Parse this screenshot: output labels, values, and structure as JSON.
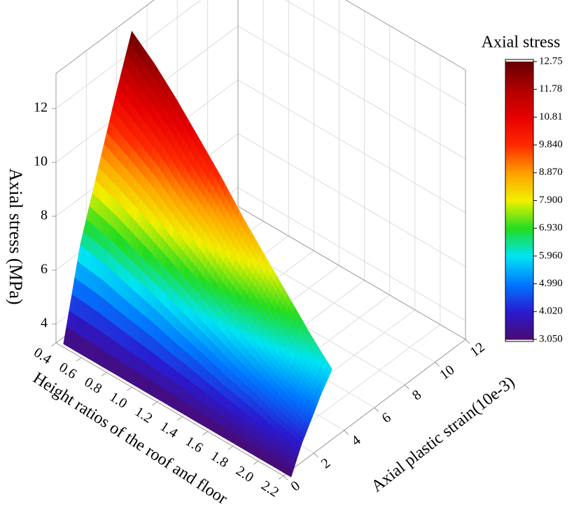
{
  "chart_data": {
    "type": "surface3d",
    "xlabel": "Height ratios of the roof and floor",
    "ylabel": "Axial plastic strain(10e-3)",
    "zlabel": "Axial stress (MPa)",
    "x": [
      0.4,
      0.6,
      0.8,
      1.0,
      1.2,
      1.4,
      1.6,
      1.8,
      2.0,
      2.2
    ],
    "y": [
      [
        0.5,
        1.6,
        2.8,
        3.9,
        5.0
      ],
      [
        0.5,
        1.6,
        2.7,
        3.7,
        4.8
      ],
      [
        0.5,
        1.5,
        2.6,
        3.6,
        4.6
      ],
      [
        0.5,
        1.5,
        2.5,
        3.4,
        4.4
      ],
      [
        0.5,
        1.4,
        2.4,
        3.3,
        4.2
      ],
      [
        0.5,
        1.4,
        2.3,
        3.1,
        4.0
      ],
      [
        0.5,
        1.3,
        2.2,
        3.0,
        3.8
      ],
      [
        0.5,
        1.3,
        2.1,
        2.8,
        3.6
      ],
      [
        0.5,
        1.2,
        2.0,
        2.7,
        3.4
      ],
      [
        0.5,
        1.2,
        1.9,
        2.5,
        3.2
      ]
    ],
    "z": [
      [
        3.05,
        6.25,
        8.62,
        10.75,
        12.75
      ],
      [
        3.05,
        6.07,
        8.3,
        10.32,
        12.2
      ],
      [
        3.05,
        5.84,
        7.9,
        9.76,
        11.5
      ],
      [
        3.05,
        5.57,
        7.44,
        9.12,
        10.7
      ],
      [
        3.05,
        5.31,
        6.98,
        8.49,
        9.9
      ],
      [
        3.05,
        5.01,
        6.47,
        7.77,
        9.0
      ],
      [
        3.05,
        4.75,
        6.01,
        7.14,
        8.2
      ],
      [
        3.05,
        4.49,
        5.55,
        6.5,
        7.4
      ],
      [
        3.05,
        4.22,
        5.09,
        5.87,
        6.6
      ],
      [
        3.05,
        3.99,
        4.69,
        5.31,
        5.9
      ]
    ],
    "xlim": [
      0.4,
      2.2
    ],
    "xticks": [
      0.4,
      0.6,
      0.8,
      {
        "value": 1,
        "label": "1.0"
      },
      1.2,
      1.4,
      1.6,
      1.8,
      {
        "value": 2,
        "label": "2.0"
      },
      2.2
    ],
    "ylim": [
      0,
      12
    ],
    "yticks": [
      0,
      2,
      4,
      6,
      8,
      10,
      12
    ],
    "zlim": [
      3.3,
      13.3
    ],
    "zticks": [
      4,
      6,
      8,
      10,
      12
    ],
    "grid": true,
    "colorbar": {
      "title": "Axial stress",
      "lim": [
        3.05,
        12.75
      ],
      "ticks": [
        {
          "value": 3.05,
          "label": "3.050"
        },
        {
          "value": 4.02,
          "label": "4.020"
        },
        {
          "value": 4.99,
          "label": "4.990"
        },
        {
          "value": 5.96,
          "label": "5.960"
        },
        {
          "value": 6.93,
          "label": "6.930"
        },
        {
          "value": 7.9,
          "label": "7.900"
        },
        {
          "value": 8.87,
          "label": "8.870"
        },
        {
          "value": 9.84,
          "label": "9.840"
        },
        10.81,
        11.78,
        12.75
      ],
      "colors": [
        "#4a0a70",
        "#2a1ad0",
        "#0078ff",
        "#00e4f4",
        "#22dc20",
        "#f0f000",
        "#ffa000",
        "#ff2a00",
        "#e80000",
        "#b00000",
        "#680000"
      ]
    }
  }
}
